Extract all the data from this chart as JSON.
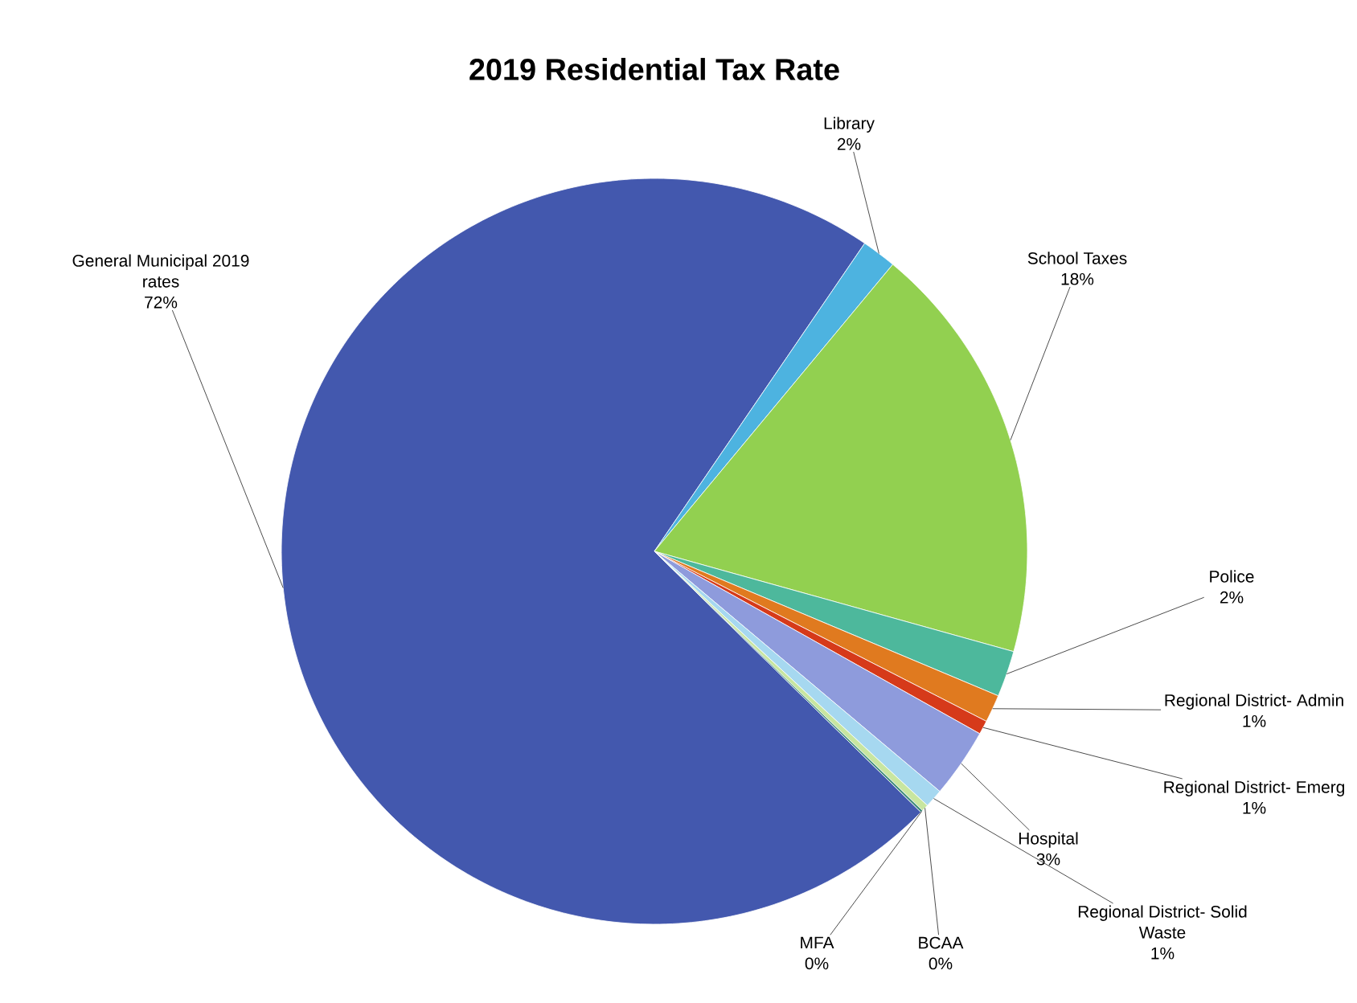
{
  "chart_data": {
    "type": "pie",
    "title": "2019 Residential Tax Rate",
    "categories": [
      "General Municipal 2019 rates",
      "Library",
      "School Taxes",
      "Police",
      "Regional District- Admin",
      "Regional District- Emerg",
      "Hospital",
      "Regional District- Solid Waste",
      "BCAA",
      "MFA"
    ],
    "values": [
      72.2,
      1.5,
      18.3,
      2.0,
      1.2,
      0.6,
      3.0,
      0.8,
      0.3,
      0.1
    ],
    "value_labels": [
      "72%",
      "2%",
      "18%",
      "2%",
      "1%",
      "1%",
      "3%",
      "1%",
      "0%",
      "0%"
    ],
    "colors": [
      "#4358ae",
      "#4db3e0",
      "#92d050",
      "#4db89c",
      "#e07a1f",
      "#d63a1a",
      "#8e9bdc",
      "#a6d8f0",
      "#c8e6a0",
      "#3e8a7a"
    ]
  }
}
